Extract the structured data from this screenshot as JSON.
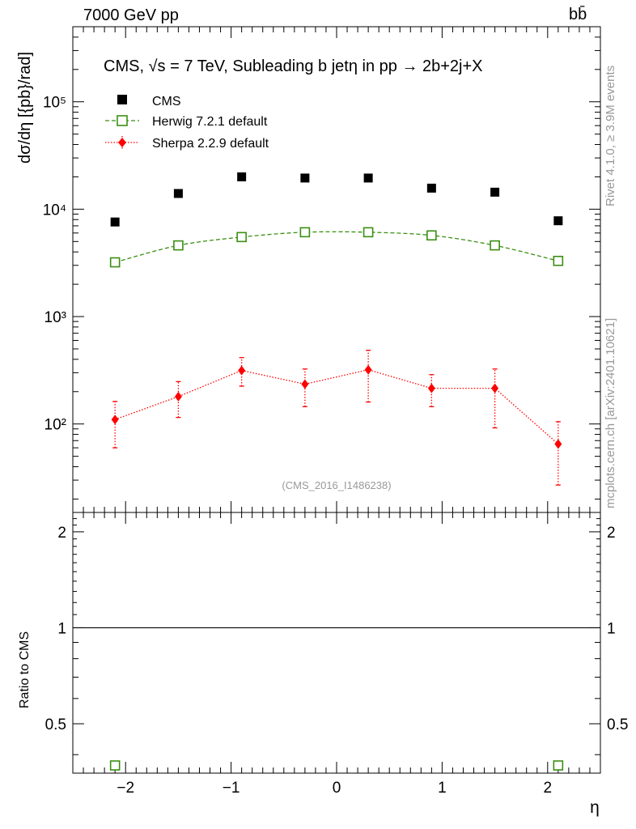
{
  "header": {
    "left": "7000 GeV pp",
    "right": "bb̄"
  },
  "side": {
    "rivet": "Rivet 4.1.0, ≥ 3.9M events",
    "mcplots": "mcplots.cern.ch [arXiv:2401.10621]"
  },
  "chart_data": {
    "type": "scatter",
    "title": "CMS, √s = 7 TeV, Subleading b jetη in pp → 2b+2j+X",
    "watermark": "(CMS_2016_I1486238)",
    "xlabel": "η",
    "ylabel": "dσ/dη [{pb}/rad]",
    "ratio_ylabel": "Ratio to CMS",
    "xlim": [
      -2.5,
      2.5
    ],
    "ylim": [
      15,
      500000
    ],
    "ratio_ylim": [
      0.35,
      2.3
    ],
    "x": [
      -2.1,
      -1.5,
      -0.9,
      -0.3,
      0.3,
      0.9,
      1.5,
      2.1
    ],
    "x_ticks": [
      -2,
      -1,
      0,
      1,
      2
    ],
    "x_tick_labels": [
      "−2",
      "−1",
      "0",
      "1",
      "2"
    ],
    "y_ticks": [
      100,
      1000,
      10000,
      100000
    ],
    "y_tick_labels": [
      "10²",
      "10³",
      "10⁴",
      "10⁵"
    ],
    "ratio_ticks": [
      0.5,
      1,
      2
    ],
    "ratio_tick_labels": [
      "0.5",
      "1",
      "2"
    ],
    "legend": [
      "CMS",
      "Herwig 7.2.1 default",
      "Sherpa 2.2.9 default"
    ],
    "series": [
      {
        "name": "CMS",
        "color": "#000000",
        "values": [
          7600,
          14000,
          20000,
          19500,
          19500,
          15700,
          14400,
          7800
        ]
      },
      {
        "name": "Herwig 7.2.1 default",
        "color": "#3a8f12",
        "values": [
          3200,
          4600,
          5500,
          6100,
          6100,
          5700,
          4600,
          3300
        ]
      },
      {
        "name": "Sherpa 2.2.9 default",
        "color": "#ff0000",
        "values": [
          110,
          180,
          315,
          235,
          320,
          215,
          215,
          65
        ],
        "err_low": [
          60,
          115,
          225,
          145,
          160,
          145,
          92,
          27
        ],
        "err_high": [
          162,
          248,
          415,
          325,
          485,
          288,
          325,
          105
        ]
      }
    ],
    "ratio_series": [
      {
        "name": "Herwig 7.2.1 default",
        "x": [
          -2.1,
          2.1
        ],
        "values": [
          0.37,
          0.37
        ]
      }
    ]
  }
}
